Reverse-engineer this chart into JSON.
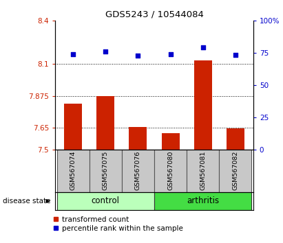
{
  "title": "GDS5243 / 10544084",
  "samples": [
    "GSM567074",
    "GSM567075",
    "GSM567076",
    "GSM567080",
    "GSM567081",
    "GSM567082"
  ],
  "transformed_count": [
    7.82,
    7.875,
    7.655,
    7.615,
    8.12,
    7.648
  ],
  "percentile_rank": [
    74,
    76,
    73,
    74,
    79,
    73.5
  ],
  "ylim_left": [
    7.5,
    8.4
  ],
  "ylim_right": [
    0,
    100
  ],
  "yticks_left": [
    7.5,
    7.65,
    7.875,
    8.1,
    8.4
  ],
  "ytick_labels_left": [
    "7.5",
    "7.65",
    "7.875",
    "8.1",
    "8.4"
  ],
  "yticks_right": [
    0,
    25,
    50,
    75,
    100
  ],
  "ytick_labels_right": [
    "0",
    "25",
    "50",
    "75",
    "100%"
  ],
  "hlines": [
    8.1,
    7.875,
    7.65
  ],
  "bar_color": "#cc2200",
  "dot_color": "#0000cc",
  "control_color": "#bbffbb",
  "arthritis_color": "#44dd44",
  "label_bg_color": "#c8c8c8",
  "bar_width": 0.55,
  "xlabel": "disease state",
  "legend_bar_label": "transformed count",
  "legend_dot_label": "percentile rank within the sample"
}
